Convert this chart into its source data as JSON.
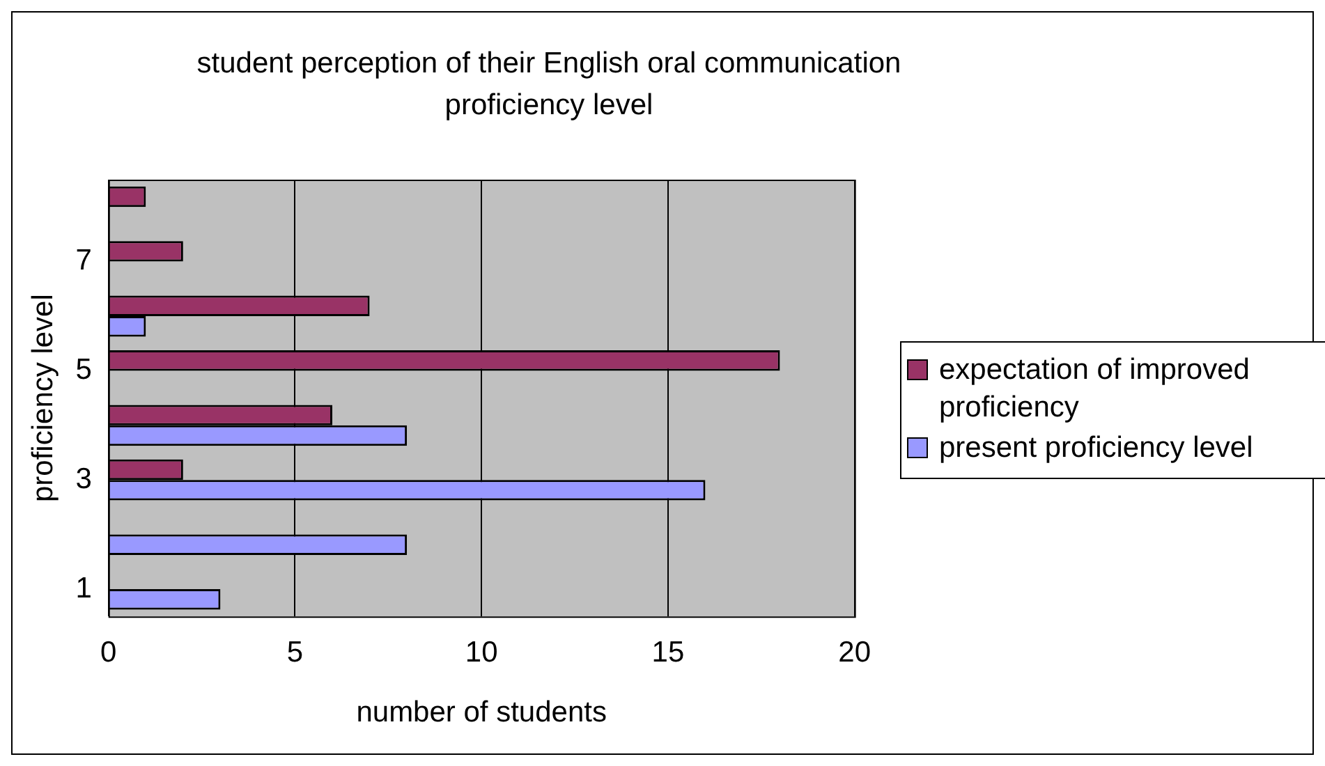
{
  "chart_data": {
    "type": "bar",
    "orientation": "horizontal",
    "title": "student perception of their English oral communication proficiency level",
    "xlabel": "number of students",
    "ylabel": "proficiency level",
    "categories": [
      null,
      "7",
      null,
      "5",
      null,
      "3",
      null,
      "1"
    ],
    "series": [
      {
        "name": "expectation of improved proficiency",
        "color": "#993366",
        "values": [
          1,
          2,
          7,
          18,
          6,
          2,
          null,
          null
        ]
      },
      {
        "name": "present proficiency level",
        "color": "#9999ff",
        "values": [
          null,
          null,
          1,
          null,
          8,
          16,
          8,
          3
        ]
      }
    ],
    "xlim": [
      0,
      20
    ],
    "xticks": [
      0,
      5,
      10,
      15,
      20
    ],
    "grid": "x",
    "legend": "right"
  }
}
